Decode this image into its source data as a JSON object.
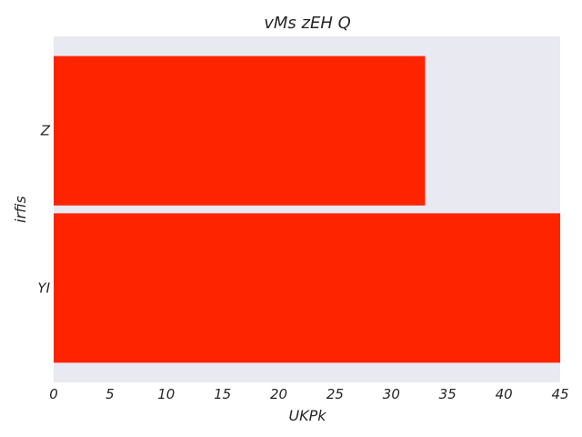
{
  "chart_data": {
    "type": "bar",
    "orientation": "horizontal",
    "title": "vMs zEH Q",
    "xlabel": "UKPk",
    "ylabel": "irfis",
    "categories": [
      "YI",
      "Z"
    ],
    "values": [
      45,
      33
    ],
    "xlim": [
      0,
      45
    ],
    "xticks": [
      0,
      5,
      10,
      15,
      20,
      25,
      30,
      35,
      40,
      45
    ],
    "grid": false,
    "background_color": "#e9e9f2",
    "bar_color": "#ff2400"
  }
}
